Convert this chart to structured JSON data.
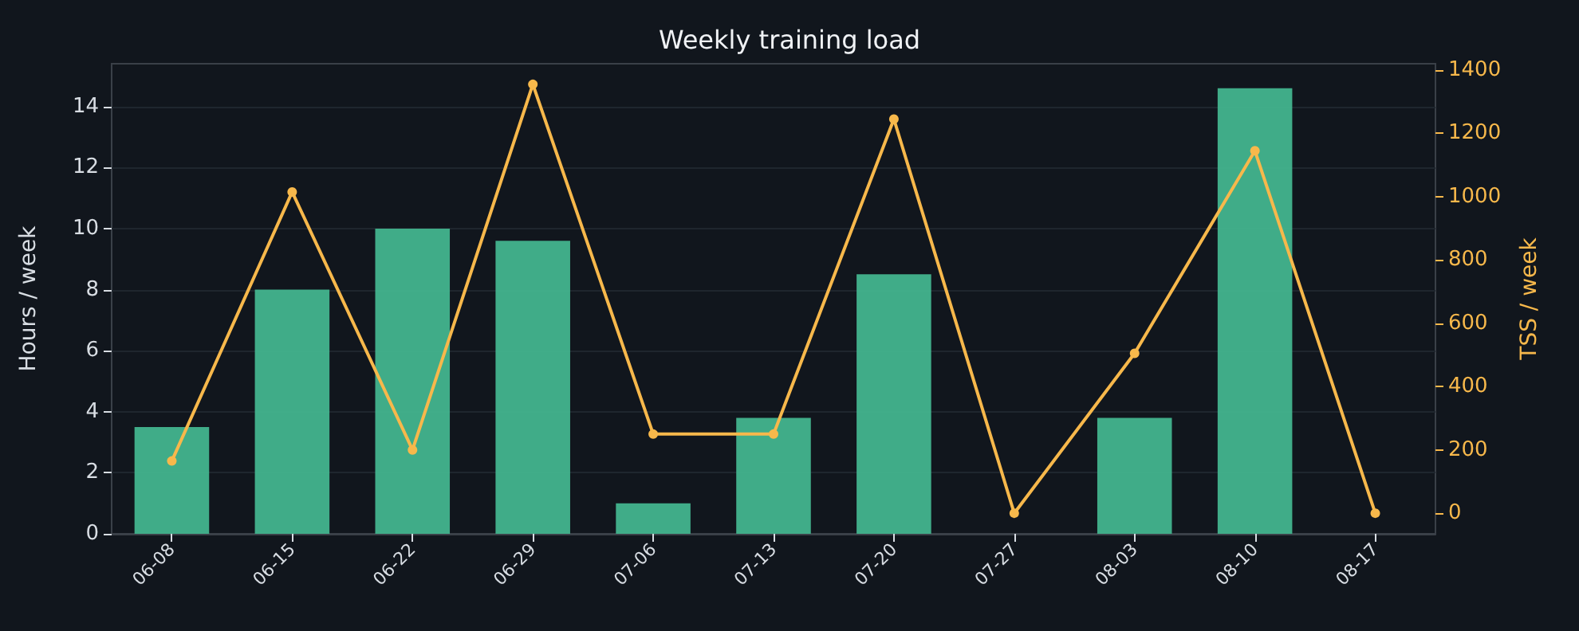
{
  "chart_data": {
    "type": "bar",
    "title": "Weekly training load",
    "ylabel": "Hours / week",
    "y2label": "TSS / week",
    "categories": [
      "06-08",
      "06-15",
      "06-22",
      "06-29",
      "07-06",
      "07-13",
      "07-20",
      "07-27",
      "08-03",
      "08-10",
      "08-17"
    ],
    "series": [
      {
        "color": "#43b48e",
        "values": [
          3.5,
          8.0,
          10.0,
          9.6,
          1.0,
          3.8,
          8.5,
          0,
          3.8,
          14.6,
          0
        ]
      },
      {
        "type": "line",
        "axis": "y2",
        "color": "#f7b84b",
        "values": [
          165,
          1015,
          200,
          1355,
          250,
          250,
          1245,
          0,
          505,
          1145,
          0
        ]
      }
    ],
    "ylim": [
      0,
      15.4
    ],
    "yticks": [
      0,
      2,
      4,
      6,
      8,
      10,
      12,
      14
    ],
    "y2lim": [
      -65,
      1420
    ],
    "y2ticks": [
      0,
      200,
      400,
      600,
      800,
      1000,
      1200,
      1400
    ],
    "grid": "y",
    "marker": "circle",
    "line_style": "solid"
  }
}
